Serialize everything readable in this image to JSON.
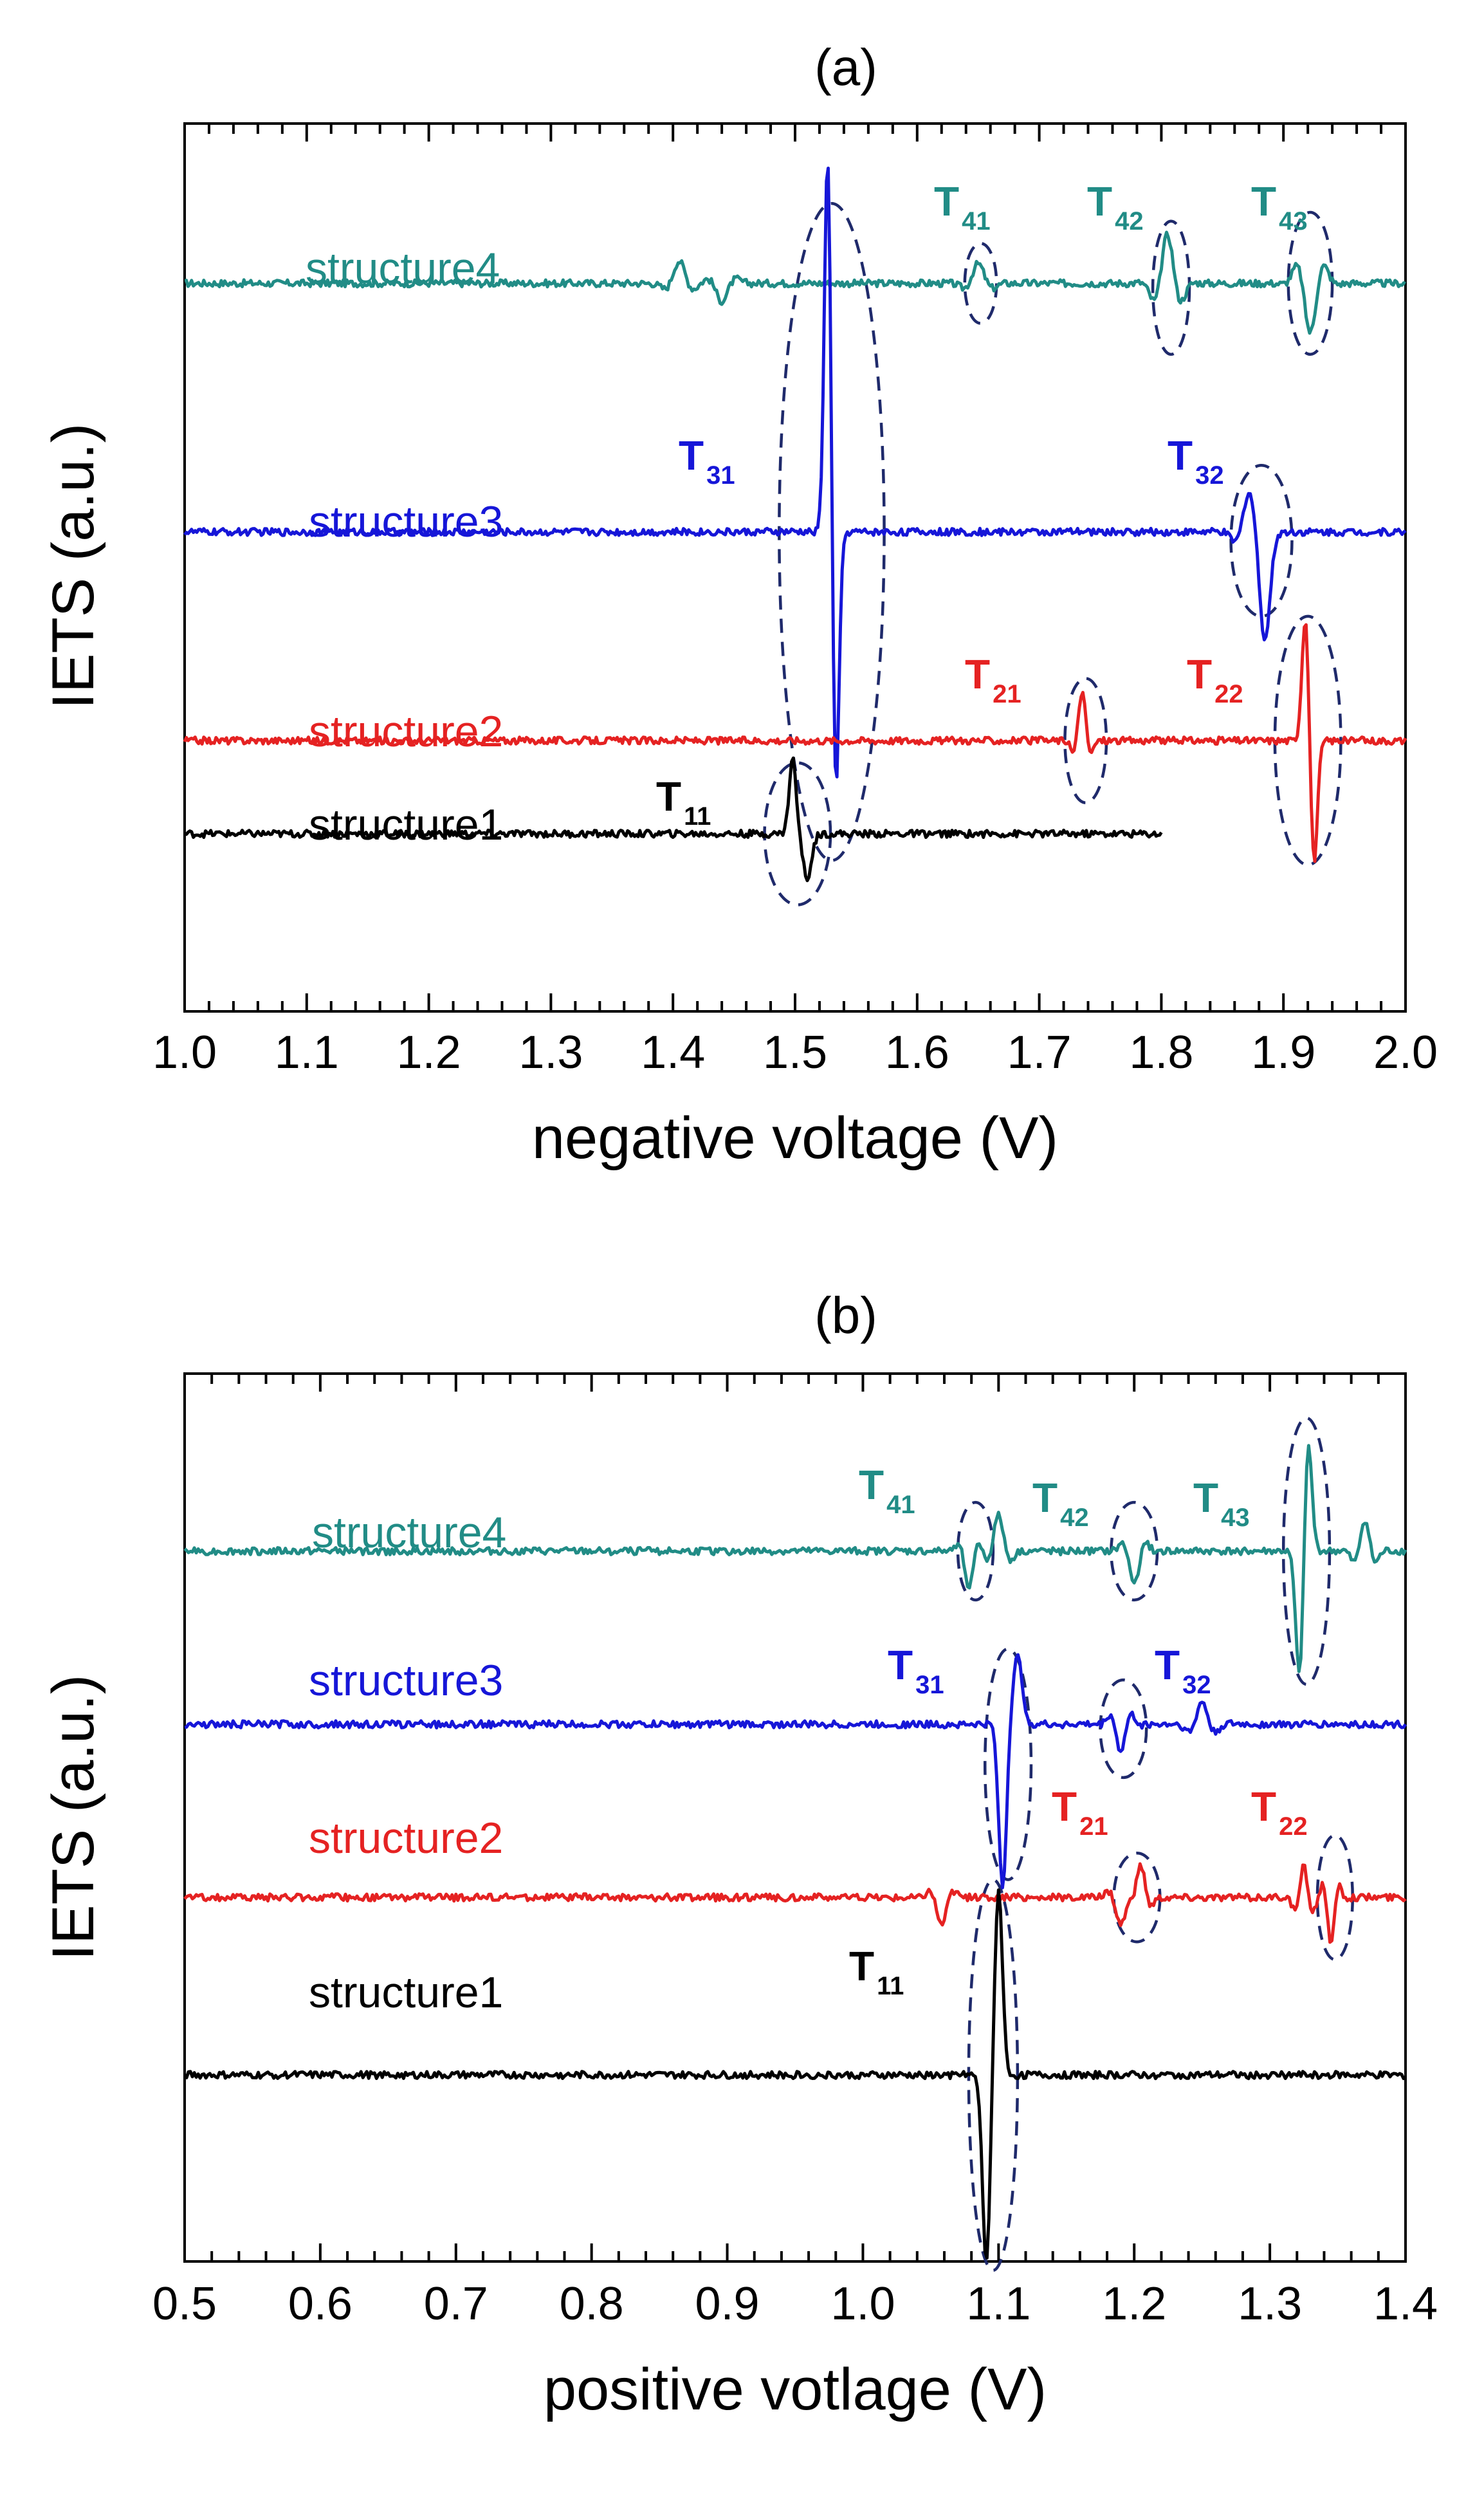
{
  "chart_data": [
    {
      "type": "line",
      "panel": "(a)",
      "title": "(a)",
      "xlabel": "negative voltage (V)",
      "ylabel": "IETS (a.u.)",
      "xlim": [
        1.0,
        2.0
      ],
      "ylim": [
        0,
        10
      ],
      "tick_labels": [
        "1.0",
        "1.1",
        "1.2",
        "1.3",
        "1.4",
        "1.5",
        "1.6",
        "1.7",
        "1.8",
        "1.9",
        "2.0"
      ],
      "series": [
        {
          "name": "structure4",
          "label": "structure4",
          "color": "#218c86",
          "baseline": 8.2,
          "x_range": [
            1.0,
            2.0
          ],
          "peaks": [
            {
              "x": 1.405,
              "amp": 0.25,
              "w": 0.008,
              "osc": 2
            },
            {
              "x": 1.44,
              "amp": -0.2,
              "w": 0.008,
              "osc": 2
            },
            {
              "x": 1.65,
              "amp": 0.22,
              "w": 0.008,
              "osc": 2
            },
            {
              "x": 1.805,
              "amp": 0.55,
              "w": 0.007,
              "osc": 3
            },
            {
              "x": 1.922,
              "amp": -0.55,
              "w": 0.007,
              "osc": 3
            }
          ],
          "annotations": [
            {
              "label": "T",
              "sub": "41",
              "x": 1.652,
              "y": 8.2,
              "rx": 0.013,
              "ry": 0.45
            },
            {
              "label": "T",
              "sub": "42",
              "x": 1.808,
              "y": 8.15,
              "rx": 0.015,
              "ry": 0.75
            },
            {
              "label": "T",
              "sub": "43",
              "x": 1.922,
              "y": 8.2,
              "rx": 0.018,
              "ry": 0.8
            }
          ]
        },
        {
          "name": "structure3",
          "label": "structure3",
          "color": "#1616d8",
          "baseline": 5.4,
          "x_range": [
            1.0,
            2.0
          ],
          "peaks": [
            {
              "x": 1.527,
              "amp": 4.5,
              "w": 0.004,
              "osc": 1
            },
            {
              "x": 1.533,
              "amp": -3.2,
              "w": 0.004,
              "osc": 1
            },
            {
              "x": 1.872,
              "amp": 0.45,
              "w": 0.008,
              "osc": 2
            },
            {
              "x": 1.885,
              "amp": -1.1,
              "w": 0.006,
              "osc": 1
            }
          ],
          "annotations": [
            {
              "label": "T",
              "sub": "31",
              "x": 1.53,
              "y": 5.4,
              "rx": 0.043,
              "ry": 3.7
            },
            {
              "label": "T",
              "sub": "32",
              "x": 1.882,
              "y": 5.3,
              "rx": 0.025,
              "ry": 0.85
            }
          ]
        },
        {
          "name": "structure2",
          "label": "structure2",
          "color": "#e52222",
          "baseline": 3.05,
          "x_range": [
            1.0,
            2.0
          ],
          "peaks": [
            {
              "x": 1.735,
              "amp": 0.55,
              "w": 0.005,
              "osc": 2
            },
            {
              "x": 1.918,
              "amp": 1.4,
              "w": 0.004,
              "osc": 1
            },
            {
              "x": 1.925,
              "amp": -1.4,
              "w": 0.004,
              "osc": 1
            }
          ],
          "annotations": [
            {
              "label": "T",
              "sub": "21",
              "x": 1.738,
              "y": 3.05,
              "rx": 0.017,
              "ry": 0.7
            },
            {
              "label": "T",
              "sub": "22",
              "x": 1.92,
              "y": 3.05,
              "rx": 0.027,
              "ry": 1.4
            }
          ]
        },
        {
          "name": "structure1",
          "label": "structure1",
          "color": "#000000",
          "baseline": 2.0,
          "x_range": [
            1.0,
            1.8
          ],
          "peaks": [
            {
              "x": 1.498,
              "amp": 0.85,
              "w": 0.004,
              "osc": 1
            },
            {
              "x": 1.51,
              "amp": -0.5,
              "w": 0.005,
              "osc": 1
            }
          ],
          "annotations": [
            {
              "label": "T",
              "sub": "11",
              "x": 1.502,
              "y": 2.0,
              "rx": 0.027,
              "ry": 0.8
            }
          ]
        }
      ]
    },
    {
      "type": "line",
      "panel": "(b)",
      "title": "(b)",
      "xlabel": "positive votlage (V)",
      "ylabel": "IETS (a.u.)",
      "xlim": [
        0.5,
        1.4
      ],
      "ylim": [
        0,
        10
      ],
      "tick_labels": [
        "0.5",
        "0.6",
        "0.7",
        "0.8",
        "0.9",
        "1.0",
        "1.1",
        "1.2",
        "1.3",
        "1.4"
      ],
      "series": [
        {
          "name": "structure4",
          "label": "structure4",
          "color": "#218c86",
          "baseline": 8.0,
          "x_range": [
            0.5,
            1.4
          ],
          "peaks": [
            {
              "x": 1.078,
              "amp": -0.45,
              "w": 0.005,
              "osc": 2
            },
            {
              "x": 1.1,
              "amp": 0.4,
              "w": 0.006,
              "osc": 2
            },
            {
              "x": 1.2,
              "amp": -0.35,
              "w": 0.006,
              "osc": 2
            },
            {
              "x": 1.328,
              "amp": 1.3,
              "w": 0.004,
              "osc": 1
            },
            {
              "x": 1.322,
              "amp": -1.5,
              "w": 0.004,
              "osc": 1
            },
            {
              "x": 1.37,
              "amp": 0.35,
              "w": 0.005,
              "osc": 3
            }
          ],
          "annotations": [
            {
              "label": "T",
              "sub": "41",
              "x": 1.083,
              "y": 8.0,
              "rx": 0.013,
              "ry": 0.55
            },
            {
              "label": "T",
              "sub": "42",
              "x": 1.2,
              "y": 8.0,
              "rx": 0.017,
              "ry": 0.55
            },
            {
              "label": "T",
              "sub": "43",
              "x": 1.327,
              "y": 8.0,
              "rx": 0.017,
              "ry": 1.5
            }
          ]
        },
        {
          "name": "structure3",
          "label": "structure3",
          "color": "#1616d8",
          "baseline": 6.05,
          "x_range": [
            0.5,
            1.4
          ],
          "peaks": [
            {
              "x": 1.103,
              "amp": -1.85,
              "w": 0.004,
              "osc": 1
            },
            {
              "x": 1.114,
              "amp": 0.75,
              "w": 0.005,
              "osc": 1
            },
            {
              "x": 1.19,
              "amp": -0.3,
              "w": 0.005,
              "osc": 3
            },
            {
              "x": 1.25,
              "amp": 0.25,
              "w": 0.006,
              "osc": 3
            }
          ],
          "annotations": [
            {
              "label": "T",
              "sub": "31",
              "x": 1.107,
              "y": 5.6,
              "rx": 0.017,
              "ry": 1.3
            },
            {
              "label": "T",
              "sub": "32",
              "x": 1.192,
              "y": 6.0,
              "rx": 0.017,
              "ry": 0.55
            }
          ]
        },
        {
          "name": "structure2",
          "label": "structure2",
          "color": "#e52222",
          "baseline": 4.1,
          "x_range": [
            0.5,
            1.4
          ],
          "peaks": [
            {
              "x": 1.058,
              "amp": -0.3,
              "w": 0.006,
              "osc": 2
            },
            {
              "x": 1.19,
              "amp": -0.3,
              "w": 0.006,
              "osc": 2
            },
            {
              "x": 1.205,
              "amp": 0.35,
              "w": 0.005,
              "osc": 2
            },
            {
              "x": 1.325,
              "amp": 0.35,
              "w": 0.004,
              "osc": 4
            },
            {
              "x": 1.345,
              "amp": -0.55,
              "w": 0.004,
              "osc": 2
            }
          ],
          "annotations": [
            {
              "label": "T",
              "sub": "21",
              "x": 1.202,
              "y": 4.1,
              "rx": 0.017,
              "ry": 0.5
            },
            {
              "label": "T",
              "sub": "22",
              "x": 1.348,
              "y": 4.1,
              "rx": 0.013,
              "ry": 0.7
            }
          ]
        },
        {
          "name": "structure1",
          "label": "structure1",
          "color": "#000000",
          "baseline": 2.1,
          "x_range": [
            0.5,
            1.4
          ],
          "peaks": [
            {
              "x": 1.091,
              "amp": -2.1,
              "w": 0.004,
              "osc": 1
            },
            {
              "x": 1.1,
              "amp": 2.1,
              "w": 0.004,
              "osc": 1
            }
          ],
          "annotations": [
            {
              "label": "T",
              "sub": "11",
              "x": 1.096,
              "y": 2.1,
              "rx": 0.018,
              "ry": 2.2
            }
          ]
        }
      ]
    }
  ]
}
